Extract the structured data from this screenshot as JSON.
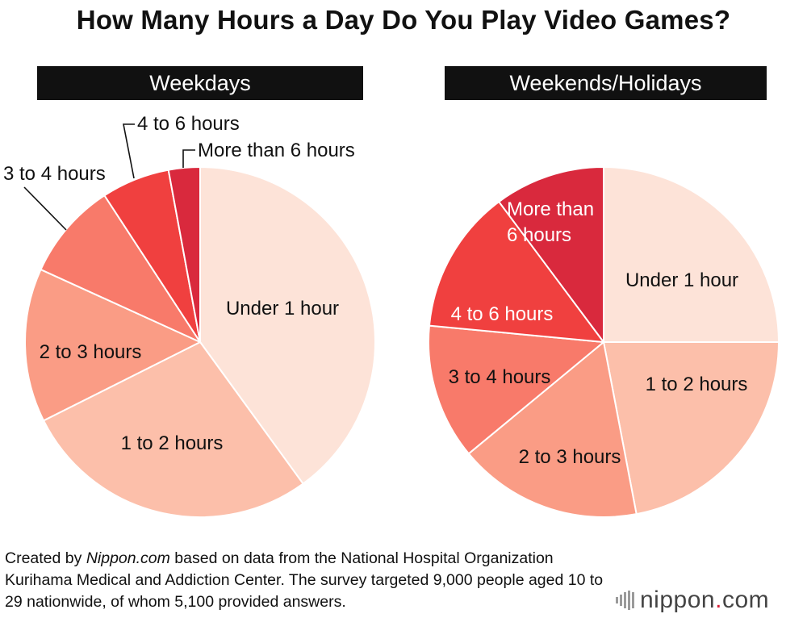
{
  "title": "How Many Hours a Day Do You Play Video Games?",
  "footnote": {
    "prefix": "Created by ",
    "source": "Nippon.com",
    "rest": " based on data from the National Hospital Organization Kurihama Medical and Addiction Center. The survey targeted 9,000 people aged 10 to 29 nationwide, of whom 5,100 provided answers."
  },
  "logo": {
    "name": "nippon",
    "dot": ".",
    "suffix": "com"
  },
  "chart_data": [
    {
      "type": "pie",
      "title": "Weekdays",
      "categories": [
        "Under 1 hour",
        "1 to 2 hours",
        "2 to 3 hours",
        "3 to 4 hours",
        "4 to 6 hours",
        "More than 6 hours"
      ],
      "values": [
        40.0,
        27.6,
        14.2,
        9.0,
        6.3,
        2.9
      ],
      "colors": [
        "#fde3d8",
        "#fcbfaa",
        "#fa9c85",
        "#f87a6a",
        "#f0403f",
        "#d9293d"
      ]
    },
    {
      "type": "pie",
      "title": "Weekends/Holidays",
      "categories": [
        "Under 1 hour",
        "1 to 2 hours",
        "2 to 3 hours",
        "3 to 4 hours",
        "4 to 6 hours",
        "More than 6 hours"
      ],
      "values": [
        25.0,
        22.0,
        17.0,
        12.5,
        13.3,
        10.2
      ],
      "colors": [
        "#fde3d8",
        "#fcbfaa",
        "#fa9c85",
        "#f87a6a",
        "#f0403f",
        "#d9293d"
      ]
    }
  ]
}
